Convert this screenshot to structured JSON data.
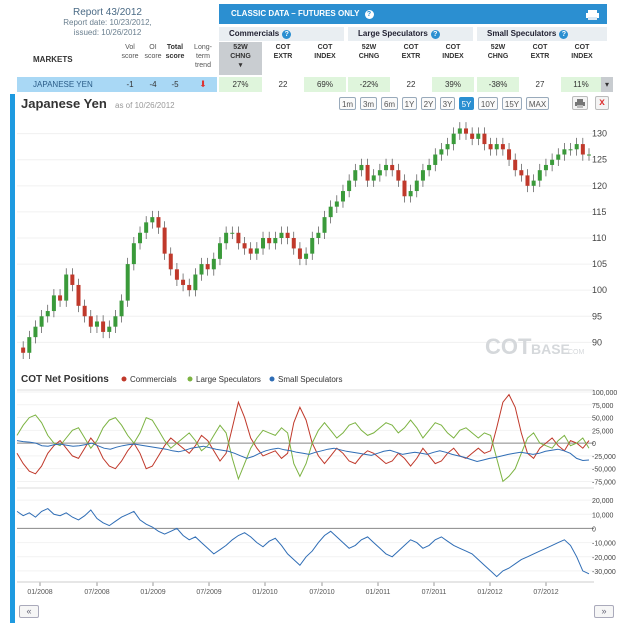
{
  "report": {
    "title": "Report 43/2012",
    "report_date": "Report date: 10/23/2012,",
    "issued": "issued: 10/26/2012"
  },
  "classic_title": "CLASSIC DATA – FUTURES ONLY",
  "groups": [
    "Commercials",
    "Large Speculators",
    "Small Speculators"
  ],
  "markets_label": "MARKETS",
  "columns": {
    "vol": [
      "Vol",
      "score"
    ],
    "oi": [
      "OI",
      "score"
    ],
    "total": [
      "Total",
      "score"
    ],
    "trend": [
      "Long-",
      "term",
      "trend"
    ],
    "c52": [
      "52W",
      "CHNG"
    ],
    "cotextr": [
      "COT",
      "EXTR"
    ],
    "cotindex": [
      "COT",
      "INDEX"
    ]
  },
  "row": {
    "market": "JAPANESE YEN",
    "vol": "-1",
    "oi": "-4",
    "total": "-5",
    "comm_52w": "27%",
    "comm_extr": "22",
    "comm_index": "69%",
    "large_52w": "-22%",
    "large_extr": "22",
    "large_index": "39%",
    "small_52w": "-38%",
    "small_extr": "27",
    "small_index": "11%"
  },
  "chart": {
    "title": "Japanese Yen",
    "asof": "as of 10/26/2012",
    "ranges": [
      "1m",
      "3m",
      "6m",
      "1Y",
      "2Y",
      "3Y",
      "5Y",
      "10Y",
      "15Y",
      "MAX"
    ],
    "selected_range": "5Y",
    "close_label": "x",
    "watermark_a": "COT",
    "watermark_b": "BASE",
    "watermark_c": ".COM",
    "nav_prev": "«",
    "nav_next": "»",
    "legend_title": "COT Net Positions",
    "legend": [
      "Commercials",
      "Large Speculators",
      "Small Speculators"
    ]
  },
  "colors": {
    "accent": "#2b8fd1",
    "commercials": "#c0392b",
    "large_specs": "#7cb342",
    "small_specs": "#2f6db5",
    "up_candle": "#3a9a3a",
    "down_candle": "#c0392b"
  },
  "chart_data": [
    {
      "type": "candlestick",
      "title": "Japanese Yen",
      "y_ticks": [
        90,
        95,
        100,
        105,
        110,
        115,
        120,
        125,
        130
      ],
      "ylim": [
        87,
        133
      ],
      "x_ticks": [
        "01/2008",
        "07/2008",
        "01/2009",
        "07/2009",
        "01/2010",
        "07/2010",
        "01/2011",
        "07/2011",
        "01/2012",
        "07/2012"
      ],
      "series": [
        {
          "values": [
            89,
            88,
            91,
            93,
            95,
            96,
            99,
            98,
            103,
            101,
            97,
            95,
            93,
            94,
            92,
            93,
            95,
            98,
            105,
            109,
            111,
            113,
            114,
            112,
            107,
            104,
            102,
            101,
            100,
            103,
            105,
            104,
            106,
            109,
            111,
            111,
            109,
            108,
            107,
            108,
            110,
            109,
            110,
            111,
            110,
            108,
            106,
            107,
            110,
            111,
            114,
            116,
            117,
            119,
            121,
            123,
            124,
            121,
            122,
            123,
            124,
            123,
            121,
            118,
            119,
            121,
            123,
            124,
            126,
            127,
            128,
            130,
            131,
            130,
            129,
            130,
            128,
            127,
            128,
            127,
            125,
            123,
            122,
            120,
            121,
            123,
            124,
            125,
            126,
            127,
            127,
            128,
            126,
            126
          ]
        }
      ]
    },
    {
      "type": "line",
      "title": "COT Net Positions",
      "y_ticks": [
        -75000,
        -50000,
        -25000,
        0,
        25000,
        50000,
        75000,
        100000
      ],
      "ylim": [
        -80000,
        100000
      ],
      "series": [
        {
          "name": "Commercials",
          "values": [
            -20000,
            -40000,
            -55000,
            -60000,
            -45000,
            -20000,
            -5000,
            5000,
            -10000,
            -25000,
            -30000,
            -10000,
            10000,
            -5000,
            -30000,
            -45000,
            -50000,
            -35000,
            -15000,
            0,
            -20000,
            -50000,
            -45000,
            -25000,
            -5000,
            10000,
            0,
            -10000,
            -20000,
            -5000,
            15000,
            5000,
            -15000,
            -35000,
            -20000,
            30000,
            80000,
            50000,
            10000,
            -10000,
            -25000,
            -20000,
            -15000,
            -30000,
            -20000,
            40000,
            70000,
            45000,
            0,
            -25000,
            -40000,
            -25000,
            -10000,
            -20000,
            -35000,
            -40000,
            -25000,
            -15000,
            -20000,
            -30000,
            -40000,
            -35000,
            -20000,
            -30000,
            -45000,
            -30000,
            -10000,
            -25000,
            -40000,
            -35000,
            -20000,
            -10000,
            -25000,
            -30000,
            -20000,
            -10000,
            -20000,
            -15000,
            30000,
            80000,
            95000,
            70000,
            20000,
            -20000,
            -30000,
            -10000,
            0,
            10000,
            -5000,
            -15000,
            5000,
            0,
            -10000,
            5000
          ]
        },
        {
          "name": "Large Speculators",
          "values": [
            15000,
            35000,
            50000,
            55000,
            40000,
            15000,
            0,
            -5000,
            10000,
            25000,
            30000,
            10000,
            -10000,
            5000,
            30000,
            45000,
            50000,
            35000,
            15000,
            0,
            20000,
            50000,
            45000,
            25000,
            5000,
            -10000,
            0,
            10000,
            20000,
            5000,
            -15000,
            -5000,
            15000,
            35000,
            20000,
            -30000,
            -70000,
            -40000,
            -10000,
            10000,
            25000,
            20000,
            15000,
            30000,
            20000,
            -40000,
            -65000,
            -40000,
            0,
            25000,
            40000,
            25000,
            10000,
            20000,
            35000,
            40000,
            25000,
            15000,
            20000,
            30000,
            40000,
            35000,
            20000,
            30000,
            45000,
            30000,
            10000,
            25000,
            40000,
            35000,
            20000,
            10000,
            25000,
            30000,
            20000,
            10000,
            20000,
            15000,
            -30000,
            -75000,
            -65000,
            -50000,
            -20000,
            10000,
            20000,
            0,
            -5000,
            -10000,
            5000,
            15000,
            -5000,
            0,
            10000,
            -10000
          ]
        },
        {
          "name": "Small Speculators",
          "values": [
            5000,
            3000,
            2000,
            0,
            -5000,
            -6000,
            -3000,
            -2000,
            -4000,
            -6000,
            -5000,
            -3000,
            0,
            -5000,
            -10000,
            -12000,
            -8000,
            -5000,
            -3000,
            -2000,
            -4000,
            -6000,
            -8000,
            -10000,
            -12000,
            -15000,
            -17000,
            -14000,
            -10000,
            -8000,
            -6000,
            -9000,
            -12000,
            -14000,
            -16000,
            -20000,
            -25000,
            -30000,
            -26000,
            -20000,
            -15000,
            -12000,
            -10000,
            -13000,
            -15000,
            -18000,
            -20000,
            -22000,
            -18000,
            -15000,
            -12000,
            -10000,
            -13000,
            -16000,
            -18000,
            -20000,
            -22000,
            -24000,
            -20000,
            -16000,
            -14000,
            -18000,
            -22000,
            -20000,
            -18000,
            -20000,
            -22000,
            -18000,
            -15000,
            -18000,
            -22000,
            -25000,
            -28000,
            -32000,
            -36000,
            -33000,
            -30000,
            -28000,
            -25000,
            -22000,
            -20000,
            -18000,
            -20000,
            -22000,
            -20000,
            -16000,
            -14000,
            -12000,
            -15000,
            -20000,
            -30000,
            -34000,
            -33000
          ]
        }
      ]
    },
    {
      "type": "line",
      "title": "",
      "y_ticks": [
        -30000,
        -20000,
        -10000,
        0,
        10000,
        20000
      ],
      "ylim": [
        -35000,
        25000
      ],
      "series": [
        {
          "name": "Small Speculators",
          "values": [
            12000,
            9000,
            11000,
            8000,
            12000,
            14000,
            10000,
            9000,
            11000,
            8000,
            6000,
            9000,
            13000,
            7000,
            4000,
            2000,
            5000,
            8000,
            10000,
            12000,
            6000,
            3000,
            1000,
            -2000,
            -4000,
            -2000,
            0,
            -5000,
            -8000,
            -6000,
            -10000,
            -14000,
            -18000,
            -15000,
            -12000,
            -8000,
            -5000,
            -3000,
            -6000,
            -10000,
            -13000,
            -9000,
            -7000,
            -12000,
            -18000,
            -22000,
            -26000,
            -20000,
            -16000,
            -10000,
            -5000,
            -2000,
            -6000,
            -10000,
            -14000,
            -12000,
            -8000,
            -6000,
            -10000,
            -14000,
            -18000,
            -20000,
            -16000,
            -12000,
            -8000,
            -10000,
            -14000,
            -12000,
            -8000,
            -6000,
            -9000,
            -12000,
            -14000,
            -16000,
            -18000,
            -22000,
            -26000,
            -30000,
            -34000,
            -30000,
            -28000,
            -25000,
            -22000,
            -20000,
            -18000,
            -16000,
            -14000,
            -12000,
            -10000,
            -8000,
            -12000,
            -20000,
            -30000,
            -32000
          ]
        }
      ]
    }
  ]
}
